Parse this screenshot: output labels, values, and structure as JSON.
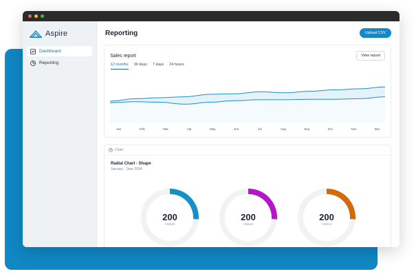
{
  "app": {
    "name": "Aspire",
    "brand_color": "#1489c8"
  },
  "window": {
    "dots": [
      "#ff5f57",
      "#ffbd2e",
      "#28c840"
    ]
  },
  "sidebar": {
    "items": [
      {
        "label": "Dashboard",
        "icon": "dashboard-icon",
        "active": true
      },
      {
        "label": "Reporting",
        "icon": "pie-chart-icon",
        "active": false
      }
    ]
  },
  "header": {
    "title": "Reporting",
    "upload_label": "Upload CSV"
  },
  "sales_report": {
    "title": "Sales report",
    "view_label": "View report",
    "tabs": [
      {
        "label": "12 months",
        "active": true
      },
      {
        "label": "30 days",
        "active": false
      },
      {
        "label": "7 days",
        "active": false
      },
      {
        "label": "24 hours",
        "active": false
      }
    ]
  },
  "chart_data": {
    "type": "area",
    "categories": [
      "Jan",
      "Feb",
      "Mar",
      "Apr",
      "May",
      "Jun",
      "Jul",
      "Aug",
      "Sep",
      "Oct",
      "Nov",
      "Dec"
    ],
    "series": [
      {
        "values": [
          43,
          48,
          50,
          52,
          57,
          58,
          62,
          60,
          63,
          66,
          68,
          72
        ],
        "color": "#1c8fc4"
      },
      {
        "values": [
          40,
          42,
          41,
          37,
          41,
          44,
          46,
          46,
          47,
          47,
          48,
          52
        ],
        "color": "#1c8fc4"
      }
    ],
    "ylim": [
      0,
      100
    ],
    "grid": false
  },
  "radial": {
    "tag": "Chart",
    "title": "Radial Chart - Shape",
    "subtitle": "January - June 2024",
    "gauges": [
      {
        "value": "200",
        "label": "Visitors",
        "fraction": 0.26,
        "color": "#1590c9"
      },
      {
        "value": "200",
        "label": "Visitors",
        "fraction": 0.26,
        "color": "#b514c9"
      },
      {
        "value": "200",
        "label": "Visitors",
        "fraction": 0.26,
        "color": "#d2690a"
      }
    ]
  }
}
